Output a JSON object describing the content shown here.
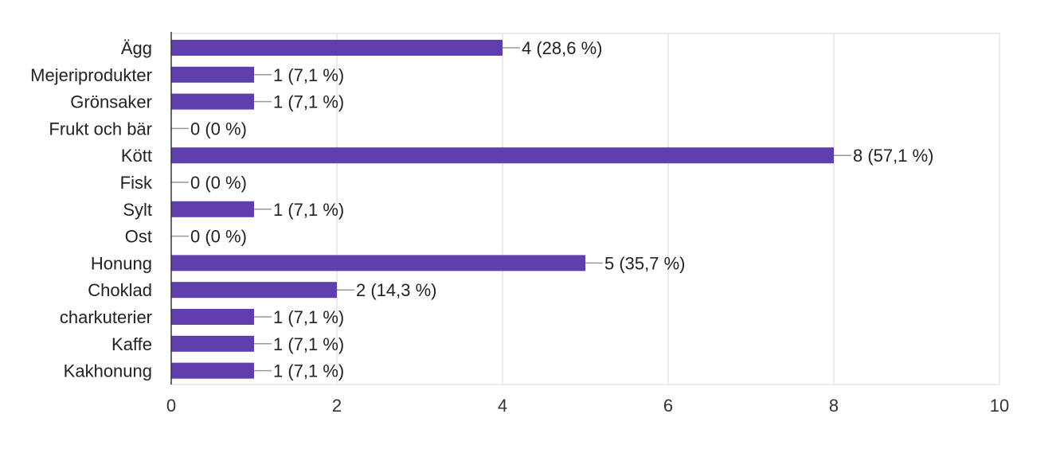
{
  "chart_data": {
    "type": "bar",
    "orientation": "horizontal",
    "categories": [
      "Ägg",
      "Mejeriprodukter",
      "Grönsaker",
      "Frukt och bär",
      "Kött",
      "Fisk",
      "Sylt",
      "Ost",
      "Honung",
      "Choklad",
      "charkuterier",
      "Kaffe",
      "Kakhonung"
    ],
    "values": [
      4,
      1,
      1,
      0,
      8,
      0,
      1,
      0,
      5,
      2,
      1,
      1,
      1
    ],
    "value_labels": [
      "4 (28,6 %)",
      "1 (7,1 %)",
      "1 (7,1 %)",
      "0 (0 %)",
      "8 (57,1 %)",
      "0 (0 %)",
      "1 (7,1 %)",
      "0 (0 %)",
      "5 (35,7 %)",
      "2 (14,3 %)",
      "1 (7,1 %)",
      "1 (7,1 %)",
      "1 (7,1 %)"
    ],
    "xlim": [
      0,
      10
    ],
    "xticks": [
      "0",
      "2",
      "4",
      "6",
      "8",
      "10"
    ],
    "grid": true,
    "bar_color": "#5e3fad",
    "grid_color": "#e6e6e6",
    "leader_color": "#999999"
  }
}
